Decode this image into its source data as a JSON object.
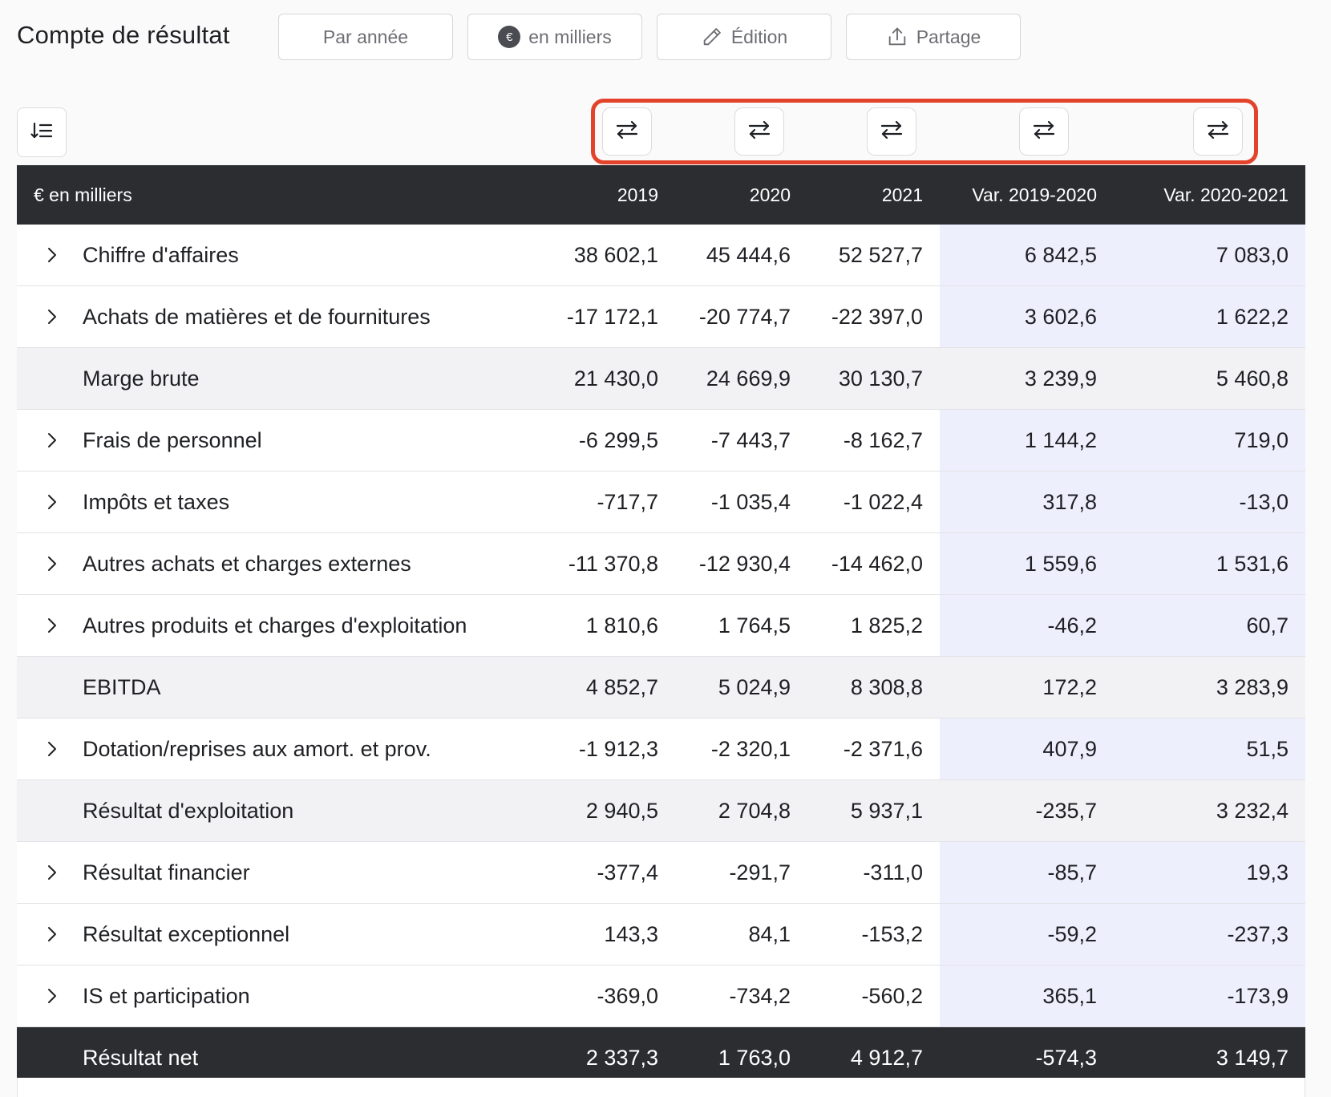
{
  "header": {
    "title": "Compte de résultat",
    "buttons": {
      "period": "Par année",
      "unit": "en milliers",
      "unit_badge": "€",
      "edit": "Édition",
      "share": "Partage"
    }
  },
  "table": {
    "columns": [
      "€ en milliers",
      "2019",
      "2020",
      "2021",
      "Var. 2019-2020",
      "Var. 2020-2021"
    ],
    "rows": [
      {
        "label": "Chiffre d'affaires",
        "values": [
          "38 602,1",
          "45 444,6",
          "52 527,7",
          "6 842,5",
          "7 083,0"
        ]
      },
      {
        "label": "Achats de matières et de fournitures",
        "values": [
          "-17 172,1",
          "-20 774,7",
          "-22 397,0",
          "3 602,6",
          "1 622,2"
        ]
      },
      {
        "label": "Marge brute",
        "values": [
          "21 430,0",
          "24 669,9",
          "30 130,7",
          "3 239,9",
          "5 460,8"
        ]
      },
      {
        "label": "Frais de personnel",
        "values": [
          "-6 299,5",
          "-7 443,7",
          "-8 162,7",
          "1 144,2",
          "719,0"
        ]
      },
      {
        "label": "Impôts et taxes",
        "values": [
          "-717,7",
          "-1 035,4",
          "-1 022,4",
          "317,8",
          "-13,0"
        ]
      },
      {
        "label": "Autres achats et charges externes",
        "values": [
          "-11 370,8",
          "-12 930,4",
          "-14 462,0",
          "1 559,6",
          "1 531,6"
        ]
      },
      {
        "label": "Autres produits et charges d'exploitation",
        "values": [
          "1 810,6",
          "1 764,5",
          "1 825,2",
          "-46,2",
          "60,7"
        ]
      },
      {
        "label": "EBITDA",
        "values": [
          "4 852,7",
          "5 024,9",
          "8 308,8",
          "172,2",
          "3 283,9"
        ]
      },
      {
        "label": "Dotation/reprises aux amort. et prov.",
        "values": [
          "-1 912,3",
          "-2 320,1",
          "-2 371,6",
          "407,9",
          "51,5"
        ]
      },
      {
        "label": "Résultat d'exploitation",
        "values": [
          "2 940,5",
          "2 704,8",
          "5 937,1",
          "-235,7",
          "3 232,4"
        ]
      },
      {
        "label": "Résultat financier",
        "values": [
          "-377,4",
          "-291,7",
          "-311,0",
          "-85,7",
          "19,3"
        ]
      },
      {
        "label": "Résultat exceptionnel",
        "values": [
          "143,3",
          "84,1",
          "-153,2",
          "-59,2",
          "-237,3"
        ]
      },
      {
        "label": "IS et participation",
        "values": [
          "-369,0",
          "-734,2",
          "-560,2",
          "365,1",
          "-173,9"
        ]
      },
      {
        "label": "Résultat net",
        "values": [
          "2 337,3",
          "1 763,0",
          "4 912,7",
          "-574,3",
          "3 149,7"
        ]
      }
    ]
  },
  "icons": {
    "sort": "sort-descending-list-icon",
    "swap": "swap-arrows-icon",
    "edit": "pencil-icon",
    "share": "share-upload-icon",
    "expand": "chevron-right-icon"
  },
  "colors": {
    "header_bg": "#2c2d31",
    "variance_bg": "#eeeffd",
    "subtotal_bg": "#f2f2f4",
    "highlight": "#e2432a"
  }
}
